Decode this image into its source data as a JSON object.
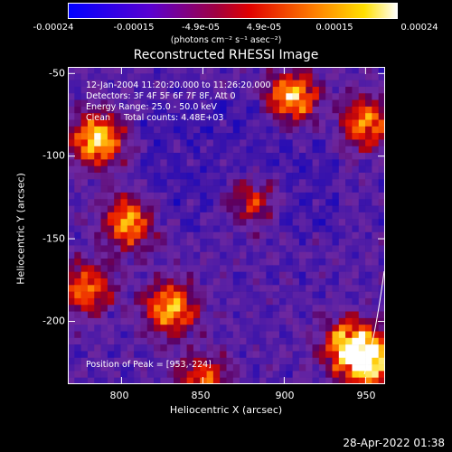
{
  "colorbar": {
    "tick_labels": [
      "-0.00024",
      "-0.00015",
      "-4.9e-05",
      "4.9e-05",
      "0.00015",
      "0.00024"
    ],
    "units_text": "(photons cm⁻² s⁻¹ asec⁻²)",
    "colors": [
      "#0000ff",
      "#7a00c8",
      "#ff0000",
      "#ff8c00",
      "#ffff00",
      "#ffffff"
    ]
  },
  "chart_data": {
    "type": "heatmap",
    "title": "Reconstructed RHESSI Image",
    "xlabel": "Heliocentric X (arcsec)",
    "ylabel": "Heliocentric Y (arcsec)",
    "xlim": [
      767,
      962
    ],
    "ylim": [
      -238,
      -46
    ],
    "x_ticks": [
      800,
      850,
      900,
      950
    ],
    "y_ticks": [
      -50,
      -100,
      -150,
      -200
    ],
    "x_tick_labels": [
      "800",
      "850",
      "900",
      "950"
    ],
    "y_tick_labels": [
      "-50",
      "-100",
      "-150",
      "-200"
    ],
    "value_range": [
      -0.00024,
      0.00024
    ],
    "hot_spots": [
      {
        "x": 785,
        "y": -90,
        "level": 0.95
      },
      {
        "x": 778,
        "y": -180,
        "level": 0.7
      },
      {
        "x": 805,
        "y": -140,
        "level": 0.8
      },
      {
        "x": 830,
        "y": -192,
        "level": 0.85
      },
      {
        "x": 905,
        "y": -65,
        "level": 0.9
      },
      {
        "x": 950,
        "y": -80,
        "level": 0.75
      },
      {
        "x": 940,
        "y": -215,
        "level": 0.9
      },
      {
        "x": 953,
        "y": -224,
        "level": 1.0
      },
      {
        "x": 850,
        "y": -235,
        "level": 0.6
      },
      {
        "x": 880,
        "y": -128,
        "level": 0.55
      }
    ],
    "annotations": [
      "12-Jan-2004 11:20:20.000 to 11:26:20.000",
      "Detectors: 3F 4F 5F 6F 7F 8F, Att 0",
      "Energy Range: 25.0 - 50.0 keV",
      "Clean     Total counts: 4.48E+03"
    ],
    "peak_label": "Position of Peak = [953,-224]"
  },
  "footer": {
    "date": "28-Apr-2022 01:38"
  }
}
